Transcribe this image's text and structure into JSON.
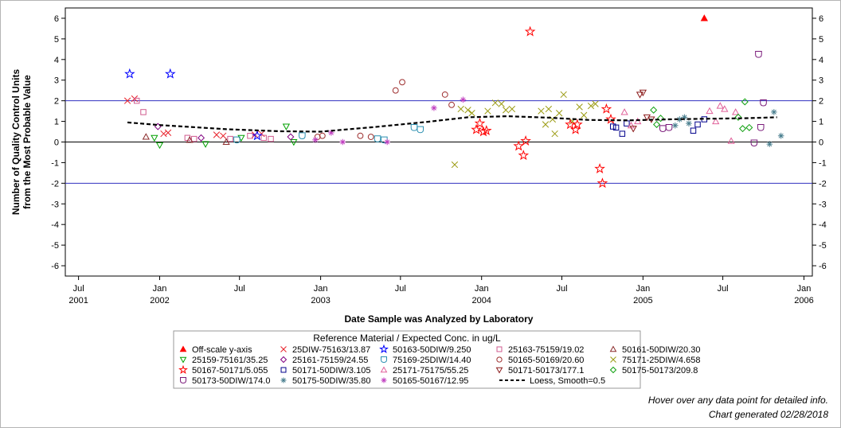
{
  "footnotes": {
    "hover": "Hover over any data point for detailed info.",
    "generated": "Chart generated 02/28/2018"
  },
  "chart_data": {
    "type": "scatter",
    "title": "",
    "xlabel": "Date Sample was Analyzed by Laboratory",
    "ylabel_line1": "Number of Quality Control Units",
    "ylabel_line2": "from the Most Probable Value",
    "ylim": [
      -6.5,
      6.5
    ],
    "xlim": [
      "2001-06-01",
      "2006-01-20"
    ],
    "y_ticks": [
      -6,
      -5,
      -4,
      -3,
      -2,
      -1,
      0,
      1,
      2,
      3,
      4,
      5,
      6
    ],
    "x_ticks": [
      {
        "date": "2001-07-01",
        "line1": "Jul",
        "line2": "2001"
      },
      {
        "date": "2002-01-01",
        "line1": "Jan",
        "line2": "2002"
      },
      {
        "date": "2002-07-01",
        "line1": "Jul",
        "line2": ""
      },
      {
        "date": "2003-01-01",
        "line1": "Jan",
        "line2": "2003"
      },
      {
        "date": "2003-07-01",
        "line1": "Jul",
        "line2": ""
      },
      {
        "date": "2004-01-01",
        "line1": "Jan",
        "line2": "2004"
      },
      {
        "date": "2004-07-01",
        "line1": "Jul",
        "line2": ""
      },
      {
        "date": "2005-01-01",
        "line1": "Jan",
        "line2": "2005"
      },
      {
        "date": "2005-07-01",
        "line1": "Jul",
        "line2": ""
      },
      {
        "date": "2006-01-01",
        "line1": "Jan",
        "line2": "2006"
      }
    ],
    "reference_lines": [
      2,
      0,
      -2
    ],
    "grid": false,
    "legend_title": "Reference Material / Expected Conc. in ug/L",
    "legend_position": "bottom",
    "series": [
      {
        "name": "Off-scale y-axis",
        "marker": "triangle-filled",
        "color": "#ff0000",
        "points": [
          [
            "2005-05-20",
            6.0
          ]
        ]
      },
      {
        "name": "25DIW-75163/13.87",
        "marker": "x",
        "color": "#e8212a",
        "points": [
          [
            "2001-10-20",
            2.0
          ],
          [
            "2001-11-05",
            2.1
          ],
          [
            "2002-01-10",
            0.4
          ],
          [
            "2002-01-20",
            0.45
          ],
          [
            "2002-05-10",
            0.35
          ],
          [
            "2002-05-25",
            0.3
          ],
          [
            "2002-08-05",
            0.35
          ],
          [
            "2002-08-20",
            0.4
          ]
        ]
      },
      {
        "name": "50163-50DIW/9.250",
        "marker": "star",
        "color": "#0000ff",
        "points": [
          [
            "2001-10-25",
            3.3
          ],
          [
            "2002-01-25",
            3.3
          ],
          [
            "2002-08-10",
            0.3
          ]
        ]
      },
      {
        "name": "25163-75159/19.02",
        "marker": "square",
        "color": "#d05a8e",
        "points": [
          [
            "2001-11-10",
            2.0
          ],
          [
            "2001-11-25",
            1.45
          ],
          [
            "2002-03-05",
            0.2
          ],
          [
            "2002-03-20",
            0.15
          ],
          [
            "2002-06-10",
            0.15
          ],
          [
            "2002-07-25",
            0.3
          ],
          [
            "2002-08-25",
            0.2
          ],
          [
            "2002-09-10",
            0.15
          ]
        ]
      },
      {
        "name": "50161-50DIW/20.30",
        "marker": "triangle",
        "color": "#8b2b2b",
        "points": [
          [
            "2001-12-01",
            0.25
          ],
          [
            "2002-03-10",
            0.1
          ],
          [
            "2002-06-01",
            0.0
          ]
        ]
      },
      {
        "name": "25159-75161/35.25",
        "marker": "triangle-down",
        "color": "#00a000",
        "points": [
          [
            "2001-12-20",
            0.2
          ],
          [
            "2002-01-01",
            -0.15
          ],
          [
            "2002-04-15",
            -0.1
          ],
          [
            "2002-07-05",
            0.2
          ],
          [
            "2002-10-15",
            0.75
          ],
          [
            "2002-11-01",
            0.0
          ]
        ]
      },
      {
        "name": "25161-75159/24.55",
        "marker": "diamond",
        "color": "#800080",
        "points": [
          [
            "2001-12-28",
            0.75
          ],
          [
            "2002-04-05",
            0.2
          ],
          [
            "2002-10-25",
            0.25
          ]
        ]
      },
      {
        "name": "75169-25DIW/14.40",
        "marker": "shield",
        "color": "#2a8fb0",
        "points": [
          [
            "2002-06-25",
            0.1
          ],
          [
            "2002-11-20",
            0.3
          ],
          [
            "2003-05-10",
            0.15
          ],
          [
            "2003-05-25",
            0.1
          ],
          [
            "2003-08-01",
            0.7
          ],
          [
            "2003-08-15",
            0.6
          ]
        ]
      },
      {
        "name": "50165-50169/20.60",
        "marker": "circle",
        "color": "#9e3030",
        "points": [
          [
            "2002-12-25",
            0.25
          ],
          [
            "2003-01-05",
            0.3
          ],
          [
            "2003-04-01",
            0.3
          ],
          [
            "2003-04-25",
            0.25
          ],
          [
            "2003-06-20",
            2.5
          ],
          [
            "2003-07-05",
            2.9
          ],
          [
            "2003-10-10",
            2.3
          ],
          [
            "2003-10-25",
            1.8
          ]
        ]
      },
      {
        "name": "75171-25DIW/4.658",
        "marker": "x",
        "color": "#9a9a10",
        "points": [
          [
            "2003-11-01",
            -1.1
          ],
          [
            "2003-11-15",
            1.6
          ],
          [
            "2003-12-01",
            1.55
          ],
          [
            "2003-12-10",
            1.4
          ],
          [
            "2004-01-15",
            1.5
          ],
          [
            "2004-02-01",
            1.9
          ],
          [
            "2004-02-15",
            1.85
          ],
          [
            "2004-02-25",
            1.55
          ],
          [
            "2004-03-10",
            1.6
          ],
          [
            "2004-05-15",
            1.5
          ],
          [
            "2004-06-01",
            1.6
          ],
          [
            "2004-06-15",
            0.4
          ],
          [
            "2004-06-25",
            1.4
          ],
          [
            "2004-07-05",
            2.3
          ],
          [
            "2004-07-25",
            1.0
          ],
          [
            "2004-08-10",
            1.7
          ],
          [
            "2004-08-20",
            1.3
          ],
          [
            "2004-09-05",
            1.75
          ],
          [
            "2004-09-15",
            1.85
          ],
          [
            "2004-05-25",
            0.85
          ],
          [
            "2004-06-10",
            1.1
          ]
        ]
      },
      {
        "name": "50167-50171/5.055",
        "marker": "star",
        "color": "#ff0000",
        "points": [
          [
            "2003-12-20",
            0.6
          ],
          [
            "2003-12-28",
            0.9
          ],
          [
            "2004-01-05",
            0.5
          ],
          [
            "2004-01-12",
            0.55
          ],
          [
            "2004-03-25",
            -0.2
          ],
          [
            "2004-04-05",
            -0.65
          ],
          [
            "2004-04-10",
            0.05
          ],
          [
            "2004-04-20",
            5.35
          ],
          [
            "2004-07-20",
            0.85
          ],
          [
            "2004-08-01",
            0.6
          ],
          [
            "2004-08-05",
            0.85
          ],
          [
            "2004-09-25",
            -1.3
          ],
          [
            "2004-10-01",
            -2.0
          ],
          [
            "2004-10-10",
            1.6
          ],
          [
            "2004-10-20",
            1.1
          ]
        ]
      },
      {
        "name": "50171-50DIW/3.105",
        "marker": "square",
        "color": "#00008b",
        "points": [
          [
            "2004-10-25",
            0.75
          ],
          [
            "2004-11-01",
            0.7
          ],
          [
            "2004-11-15",
            0.4
          ],
          [
            "2004-11-25",
            0.9
          ],
          [
            "2005-04-25",
            0.55
          ],
          [
            "2005-05-05",
            0.85
          ],
          [
            "2005-05-20",
            1.1
          ]
        ]
      },
      {
        "name": "25171-75175/55.25",
        "marker": "triangle",
        "color": "#e0609a",
        "points": [
          [
            "2004-11-20",
            1.45
          ],
          [
            "2004-12-05",
            0.8
          ],
          [
            "2004-12-20",
            1.0
          ],
          [
            "2005-06-01",
            1.5
          ],
          [
            "2005-06-15",
            1.0
          ],
          [
            "2005-06-25",
            1.75
          ],
          [
            "2005-07-05",
            1.6
          ],
          [
            "2005-07-20",
            0.05
          ],
          [
            "2005-07-30",
            1.45
          ]
        ]
      },
      {
        "name": "50171-50173/177.1",
        "marker": "triangle-down",
        "color": "#8b1a1a",
        "points": [
          [
            "2004-12-10",
            0.65
          ],
          [
            "2004-12-25",
            2.3
          ],
          [
            "2005-01-01",
            2.4
          ],
          [
            "2005-01-10",
            1.2
          ],
          [
            "2005-01-20",
            1.1
          ]
        ]
      },
      {
        "name": "50175-50173/209.8",
        "marker": "diamond",
        "color": "#10a010",
        "points": [
          [
            "2005-01-25",
            1.55
          ],
          [
            "2005-02-01",
            0.85
          ],
          [
            "2005-02-10",
            1.15
          ],
          [
            "2005-08-05",
            1.2
          ],
          [
            "2005-08-15",
            0.65
          ],
          [
            "2005-08-20",
            1.95
          ],
          [
            "2005-08-30",
            0.7
          ]
        ]
      },
      {
        "name": "50173-50DIW/174.0",
        "marker": "shield",
        "color": "#7a1a7a",
        "points": [
          [
            "2005-02-15",
            0.65
          ],
          [
            "2005-03-01",
            0.7
          ],
          [
            "2005-09-10",
            -0.05
          ],
          [
            "2005-09-20",
            4.25
          ],
          [
            "2005-09-25",
            0.7
          ],
          [
            "2005-10-01",
            1.9
          ]
        ]
      },
      {
        "name": "50175-50DIW/35.80",
        "marker": "asterisk",
        "color": "#4a7f8f",
        "points": [
          [
            "2005-03-15",
            0.8
          ],
          [
            "2005-03-25",
            1.1
          ],
          [
            "2005-04-05",
            1.2
          ],
          [
            "2005-04-15",
            0.9
          ],
          [
            "2005-10-15",
            -0.1
          ],
          [
            "2005-10-25",
            1.45
          ],
          [
            "2005-11-10",
            0.3
          ]
        ]
      },
      {
        "name": "50165-50167/12.95",
        "marker": "asterisk",
        "color": "#c040c0",
        "points": [
          [
            "2002-12-20",
            0.1
          ],
          [
            "2003-01-25",
            0.45
          ],
          [
            "2003-02-20",
            0.0
          ],
          [
            "2003-06-01",
            0.0
          ],
          [
            "2003-09-15",
            1.65
          ],
          [
            "2003-11-20",
            2.05
          ]
        ]
      },
      {
        "name": "Loess, Smooth=0.5",
        "marker": "line-dashed",
        "color": "#000000",
        "points": [
          [
            "2001-10-20",
            0.95
          ],
          [
            "2002-01-01",
            0.82
          ],
          [
            "2002-06-01",
            0.62
          ],
          [
            "2002-10-01",
            0.52
          ],
          [
            "2003-01-01",
            0.5
          ],
          [
            "2003-05-01",
            0.72
          ],
          [
            "2003-09-01",
            0.98
          ],
          [
            "2003-12-01",
            1.2
          ],
          [
            "2004-03-01",
            1.25
          ],
          [
            "2004-06-01",
            1.18
          ],
          [
            "2004-09-01",
            1.07
          ],
          [
            "2004-12-01",
            1.05
          ],
          [
            "2005-03-01",
            1.1
          ],
          [
            "2005-06-01",
            1.13
          ],
          [
            "2005-08-15",
            1.15
          ],
          [
            "2005-11-01",
            1.2
          ]
        ]
      }
    ]
  }
}
